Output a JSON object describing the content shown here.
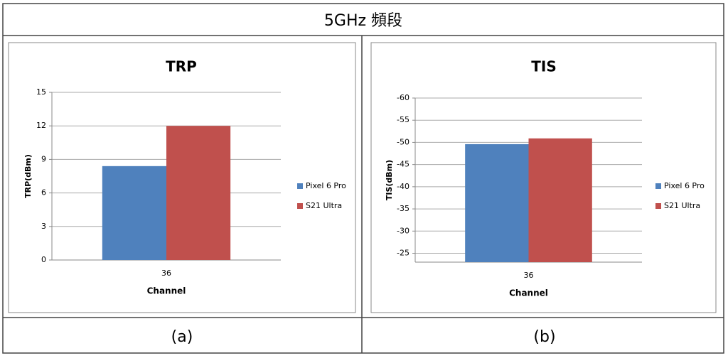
{
  "header": {
    "title": "5GHz 頻段"
  },
  "chart_data": [
    {
      "type": "bar",
      "title": "TRP",
      "x_label": "Channel",
      "y_label": "TRP(dBm)",
      "categories": [
        "36"
      ],
      "series": [
        {
          "name": "Pixel 6 Pro",
          "color": "#4f81bd",
          "values": [
            8.4
          ]
        },
        {
          "name": "S21 Ultra",
          "color": "#c0504d",
          "values": [
            12.0
          ]
        }
      ],
      "ylim": [
        0,
        15
      ],
      "yticks": [
        0,
        3,
        6,
        9,
        12,
        15
      ],
      "grid": true,
      "legend": "right"
    },
    {
      "type": "bar",
      "title": "TIS",
      "x_label": "Channel",
      "y_label": "TIS(dBm)",
      "categories": [
        "36"
      ],
      "series": [
        {
          "name": "Pixel 6 Pro",
          "color": "#4f81bd",
          "values": [
            -49.6
          ]
        },
        {
          "name": "S21 Ultra",
          "color": "#c0504d",
          "values": [
            -50.9
          ]
        }
      ],
      "ylim": [
        -23,
        -60
      ],
      "yticks": [
        -25,
        -30,
        -35,
        -40,
        -45,
        -50,
        -55,
        -60
      ],
      "grid": true,
      "legend": "right"
    }
  ],
  "captions": [
    "(a)",
    "(b)"
  ]
}
